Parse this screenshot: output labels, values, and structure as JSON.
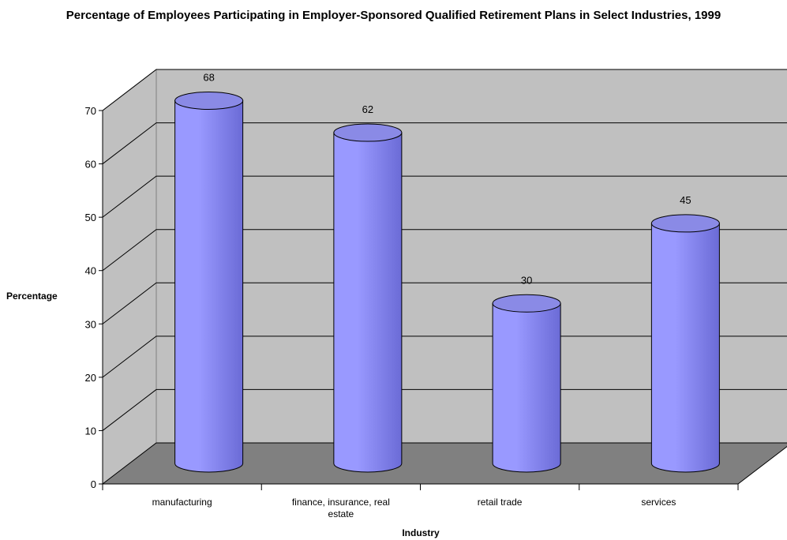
{
  "chart_data": {
    "type": "bar",
    "title": "Percentage of Employees Participating in Employer-Sponsored Qualified Retirement Plans in Select Industries, 1999",
    "xlabel": "Industry",
    "ylabel": "Percentage",
    "categories": [
      "manufacturing",
      "finance, insurance, real estate",
      "retail trade",
      "services"
    ],
    "category_lines": [
      [
        "manufacturing"
      ],
      [
        "finance, insurance, real",
        "estate"
      ],
      [
        "retail trade"
      ],
      [
        "services"
      ]
    ],
    "values": [
      68,
      62,
      30,
      45
    ],
    "data_labels": [
      "68",
      "62",
      "30",
      "45"
    ],
    "ylim": [
      0,
      70
    ],
    "yticks": [
      0,
      10,
      20,
      30,
      40,
      50,
      60,
      70
    ],
    "grid": true,
    "legend": "none",
    "style": "3d-cylinder",
    "colors": {
      "bar": "#9999ff",
      "bar_dark": "#6b6bd6",
      "bar_top": "#8a8ae6",
      "back_wall": "#c0c0c0",
      "side_wall": "#c0c0c0",
      "floor": "#808080",
      "outline": "#000000"
    }
  }
}
